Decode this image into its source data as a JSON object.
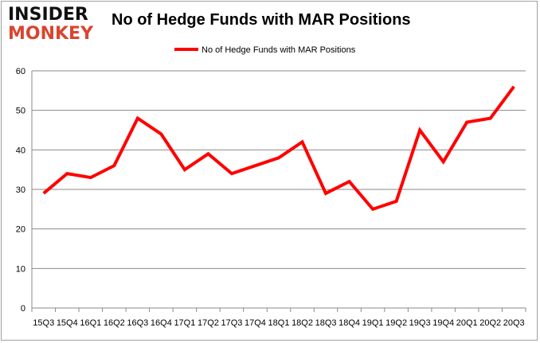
{
  "logo": {
    "line1": "INSIDER",
    "line2": "MONKEY"
  },
  "chart_data": {
    "type": "line",
    "title": "No of Hedge Funds with MAR Positions",
    "categories": [
      "15Q3",
      "15Q4",
      "16Q1",
      "16Q2",
      "16Q3",
      "16Q4",
      "17Q1",
      "17Q2",
      "17Q3",
      "17Q4",
      "18Q1",
      "18Q2",
      "18Q3",
      "18Q4",
      "19Q1",
      "19Q2",
      "19Q3",
      "19Q4",
      "20Q1",
      "20Q2",
      "20Q3"
    ],
    "series": [
      {
        "name": "No of Hedge Funds with MAR Positions",
        "color": "#ff0000",
        "values": [
          29,
          34,
          33,
          36,
          48,
          44,
          35,
          39,
          34,
          36,
          38,
          42,
          29,
          32,
          25,
          27,
          45,
          37,
          47,
          48,
          56
        ]
      }
    ],
    "ylim": [
      0,
      60
    ],
    "yticks": [
      0,
      10,
      20,
      30,
      40,
      50,
      60
    ],
    "grid": true,
    "legend": "top-center"
  }
}
